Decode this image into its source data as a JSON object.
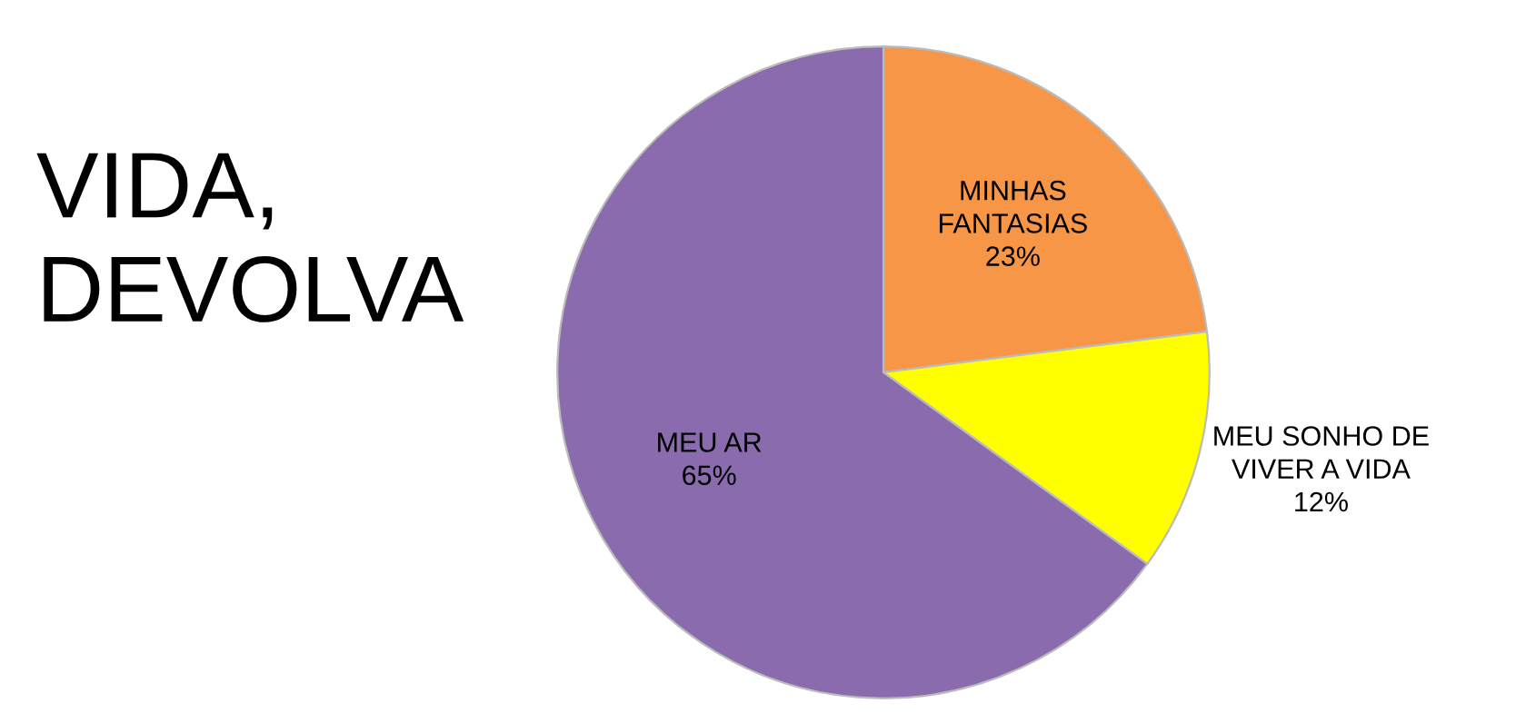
{
  "chart_data": {
    "type": "pie",
    "title": "VIDA,\nDEVOLVA",
    "categories": [
      "MINHAS\nFANTASIAS",
      "MEU SONHO DE\nVIVER A VIDA",
      "MEU AR\n"
    ],
    "values": [
      23,
      12,
      65
    ],
    "colors": [
      "#f79646",
      "#ffff00",
      "#8a6bad"
    ],
    "value_labels": [
      "23%",
      "12%",
      "65%"
    ]
  }
}
